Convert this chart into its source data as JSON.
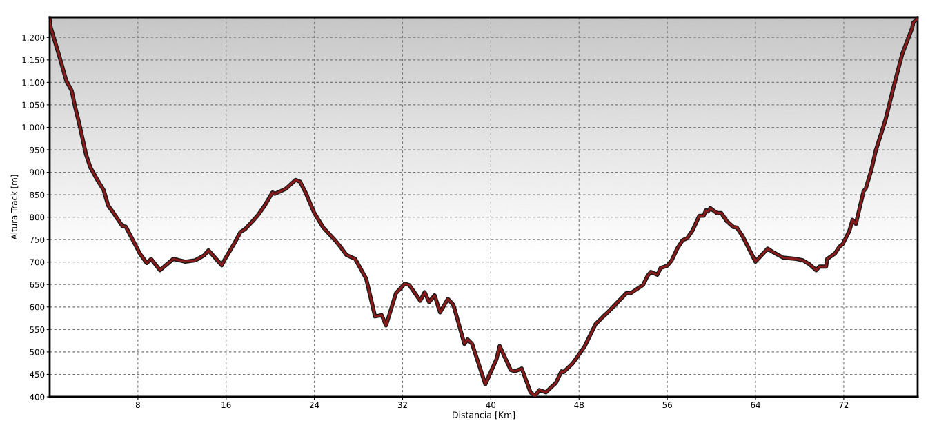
{
  "chart_data": {
    "type": "line",
    "xlabel": "Distancia [Km]",
    "ylabel": "Altura Track [m]",
    "xlim": [
      0,
      78.7
    ],
    "ylim": [
      400,
      1245
    ],
    "xticks": [
      8,
      16,
      24,
      32,
      40,
      48,
      56,
      64,
      72
    ],
    "yticks": [
      400,
      450,
      500,
      550,
      600,
      650,
      700,
      750,
      800,
      850,
      900,
      950,
      {
        "value": 1000,
        "label": "1.000"
      },
      {
        "value": 1050,
        "label": "1.050"
      },
      {
        "value": 1100,
        "label": "1.100"
      },
      {
        "value": 1150,
        "label": "1.150"
      },
      {
        "value": 1200,
        "label": "1.200"
      }
    ],
    "grid": true,
    "legend": false,
    "marker": "none",
    "line_style": "solid",
    "series": [
      {
        "color": "#8b1a1a",
        "x": [
          0,
          0.05,
          0.9,
          1.5,
          2.0,
          2.3,
          2.7,
          3.3,
          3.7,
          4.3,
          4.9,
          5.3,
          5.8,
          6.6,
          6.9,
          8.2,
          8.8,
          9.2,
          10.0,
          11.2,
          11.6,
          12.3,
          13.2,
          14.0,
          14.4,
          15.6,
          15.9,
          16.8,
          17.3,
          17.7,
          18.4,
          18.9,
          19.5,
          20.2,
          20.4,
          21.4,
          22.3,
          22.7,
          23.2,
          24.0,
          24.8,
          25.9,
          26.3,
          26.9,
          27.7,
          28.7,
          29.5,
          30.1,
          30.5,
          31.4,
          32.2,
          32.6,
          33.6,
          34.0,
          34.4,
          34.9,
          35.4,
          36.1,
          36.6,
          37.6,
          37.9,
          38.3,
          39.5,
          40.5,
          40.8,
          41.8,
          42.2,
          42.8,
          43.6,
          44.0,
          44.4,
          45.0,
          45.5,
          45.9,
          46.4,
          46.6,
          47.4,
          48.1,
          48.5,
          49.5,
          50.2,
          50.6,
          52.3,
          52.7,
          53.8,
          54.2,
          54.5,
          55.1,
          55.4,
          56.0,
          56.4,
          56.9,
          57.4,
          57.8,
          58.3,
          58.9,
          59.3,
          59.5,
          59.7,
          59.9,
          60.5,
          60.9,
          61.4,
          62.0,
          62.3,
          62.8,
          64.0,
          65.1,
          65.6,
          66.5,
          67.7,
          68.3,
          68.9,
          69.5,
          69.8,
          70.4,
          70.5,
          71.2,
          71.6,
          71.9,
          72.5,
          72.8,
          73.1,
          73.8,
          74.0,
          74.5,
          74.9,
          75.8,
          76.5,
          77.3,
          78.2,
          78.3,
          78.6
        ],
        "values": [
          1240,
          1226,
          1156,
          1104,
          1081,
          1046,
          1006,
          939,
          910,
          884,
          860,
          826,
          809,
          780,
          779,
          718,
          698,
          707,
          682,
          707,
          705,
          701,
          704,
          715,
          726,
          693,
          707,
          744,
          767,
          773,
          791,
          805,
          826,
          855,
          852,
          863,
          883,
          879,
          855,
          809,
          777,
          748,
          736,
          716,
          707,
          663,
          579,
          582,
          559,
          631,
          652,
          649,
          614,
          633,
          611,
          626,
          588,
          618,
          605,
          518,
          528,
          518,
          428,
          483,
          513,
          460,
          457,
          463,
          410,
          402,
          415,
          410,
          422,
          431,
          457,
          455,
          474,
          498,
          512,
          562,
          579,
          588,
          631,
          631,
          649,
          669,
          678,
          672,
          687,
          692,
          704,
          730,
          749,
          753,
          771,
          803,
          803,
          815,
          813,
          820,
          809,
          809,
          791,
          778,
          777,
          759,
          701,
          730,
          722,
          710,
          707,
          704,
          695,
          682,
          690,
          690,
          707,
          719,
          734,
          740,
          769,
          794,
          785,
          858,
          864,
          905,
          948,
          1018,
          1088,
          1163,
          1221,
          1233,
          1240
        ]
      }
    ]
  }
}
